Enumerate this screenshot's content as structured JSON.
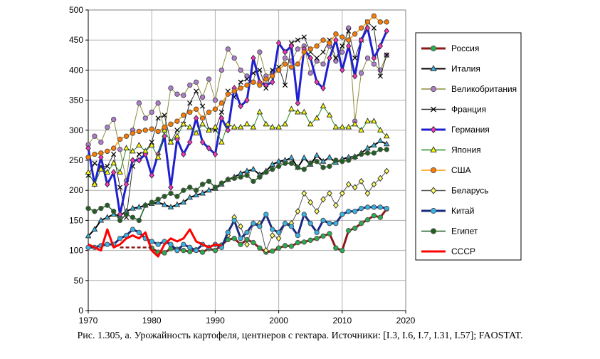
{
  "caption": "Рис. 1.305, а. Урожайность  картофеля, центнеров с гектара. Источники: [I.3, I.6, I.7, I.31, I.57]; FAOSTAT.",
  "chart_data": {
    "type": "line",
    "title": "",
    "xlabel": "",
    "ylabel": "",
    "xlim": [
      1970,
      2020
    ],
    "ylim": [
      0,
      500
    ],
    "xticks": [
      1970,
      1980,
      1990,
      2000,
      2010,
      2020
    ],
    "yticks": [
      0,
      50,
      100,
      150,
      200,
      250,
      300,
      350,
      400,
      450,
      500
    ],
    "grid": true,
    "legend_position": "right",
    "series": [
      {
        "name": "Россия",
        "color": "#8b1a1a",
        "marker": "circle",
        "marker_fill": "#22b14c",
        "width": 3,
        "x": [
          1980,
          1981,
          1982,
          1983,
          1984,
          1985,
          1986,
          1987,
          1988,
          1989,
          1990,
          1991,
          1992,
          1993,
          1994,
          1995,
          1996,
          1997,
          1998,
          1999,
          2000,
          2001,
          2002,
          2003,
          2004,
          2005,
          2006,
          2007,
          2008,
          2009,
          2010,
          2011,
          2012,
          2013,
          2014,
          2015,
          2016,
          2017
        ],
        "y": [
          104,
          97,
          96,
          103,
          102,
          100,
          98,
          101,
          97,
          103,
          100,
          109,
          118,
          120,
          110,
          118,
          113,
          104,
          97,
          99,
          104,
          108,
          107,
          113,
          114,
          117,
          120,
          124,
          128,
          104,
          100,
          133,
          137,
          145,
          151,
          158,
          155,
          169
        ]
      },
      {
        "name": "Италия",
        "color": "#000000",
        "marker": "triangle",
        "marker_fill": "#33b5e5",
        "width": 2,
        "x": [
          1970,
          1971,
          1972,
          1973,
          1974,
          1975,
          1976,
          1977,
          1978,
          1979,
          1980,
          1981,
          1982,
          1983,
          1984,
          1985,
          1986,
          1987,
          1988,
          1989,
          1990,
          1991,
          1992,
          1993,
          1994,
          1995,
          1996,
          1997,
          1998,
          1999,
          2000,
          2001,
          2002,
          2003,
          2004,
          2005,
          2006,
          2007,
          2008,
          2009,
          2010,
          2011,
          2012,
          2013,
          2014,
          2015,
          2016,
          2017
        ],
        "y": [
          124,
          135,
          150,
          155,
          160,
          158,
          165,
          170,
          172,
          175,
          178,
          180,
          176,
          172,
          176,
          180,
          188,
          192,
          195,
          200,
          203,
          210,
          218,
          222,
          228,
          232,
          235,
          226,
          232,
          243,
          248,
          250,
          254,
          238,
          254,
          243,
          258,
          248,
          255,
          246,
          252,
          255,
          256,
          262,
          270,
          275,
          282,
          277
        ]
      },
      {
        "name": "Великобритания",
        "color": "#8b8b3a",
        "marker": "circle",
        "marker_fill": "#b07cd0",
        "width": 1,
        "x": [
          1970,
          1971,
          1972,
          1973,
          1974,
          1975,
          1976,
          1977,
          1978,
          1979,
          1980,
          1981,
          1982,
          1983,
          1984,
          1985,
          1986,
          1987,
          1988,
          1989,
          1990,
          1991,
          1992,
          1993,
          1994,
          1995,
          1996,
          1997,
          1998,
          1999,
          2000,
          2001,
          2002,
          2003,
          2004,
          2005,
          2006,
          2007,
          2008,
          2009,
          2010,
          2011,
          2012,
          2013,
          2014,
          2015,
          2016,
          2017
        ],
        "y": [
          276,
          290,
          280,
          305,
          318,
          268,
          216,
          300,
          345,
          320,
          330,
          345,
          300,
          370,
          360,
          358,
          375,
          380,
          355,
          385,
          350,
          400,
          435,
          420,
          400,
          390,
          380,
          430,
          390,
          395,
          400,
          420,
          415,
          435,
          440,
          395,
          415,
          410,
          440,
          415,
          430,
          470,
          315,
          395,
          420,
          410,
          400,
          425
        ]
      },
      {
        "name": "Франция",
        "color": "#333333",
        "marker": "x",
        "marker_fill": "#000000",
        "width": 1,
        "x": [
          1970,
          1971,
          1972,
          1973,
          1974,
          1975,
          1976,
          1977,
          1978,
          1979,
          1980,
          1981,
          1982,
          1983,
          1984,
          1985,
          1986,
          1987,
          1988,
          1989,
          1990,
          1991,
          1992,
          1993,
          1994,
          1995,
          1996,
          1997,
          1998,
          1999,
          2000,
          2001,
          2002,
          2003,
          2004,
          2005,
          2006,
          2007,
          2008,
          2009,
          2010,
          2011,
          2012,
          2013,
          2014,
          2015,
          2016,
          2017
        ],
        "y": [
          225,
          245,
          240,
          240,
          260,
          205,
          155,
          240,
          260,
          265,
          280,
          320,
          325,
          280,
          300,
          310,
          345,
          365,
          340,
          300,
          300,
          330,
          365,
          355,
          380,
          385,
          395,
          400,
          370,
          400,
          405,
          375,
          445,
          450,
          455,
          430,
          420,
          430,
          450,
          420,
          440,
          465,
          420,
          450,
          480,
          470,
          390,
          425
        ]
      },
      {
        "name": "Германия",
        "color": "#1f1fd0",
        "marker": "diamond",
        "marker_fill": "#ff33cc",
        "width": 3,
        "x": [
          1970,
          1971,
          1972,
          1973,
          1974,
          1975,
          1976,
          1977,
          1978,
          1979,
          1980,
          1981,
          1982,
          1983,
          1984,
          1985,
          1986,
          1987,
          1988,
          1989,
          1990,
          1991,
          1992,
          1993,
          1994,
          1995,
          1996,
          1997,
          1998,
          1999,
          2000,
          2001,
          2002,
          2003,
          2004,
          2005,
          2006,
          2007,
          2008,
          2009,
          2010,
          2011,
          2012,
          2013,
          2014,
          2015,
          2016,
          2017
        ],
        "y": [
          270,
          210,
          255,
          210,
          230,
          160,
          210,
          250,
          250,
          260,
          225,
          260,
          290,
          205,
          285,
          260,
          280,
          320,
          280,
          270,
          260,
          320,
          300,
          370,
          340,
          350,
          420,
          380,
          375,
          380,
          445,
          430,
          440,
          345,
          435,
          420,
          380,
          370,
          420,
          450,
          400,
          440,
          390,
          450,
          470,
          420,
          440,
          465
        ]
      },
      {
        "name": "Япония",
        "color": "#228b22",
        "marker": "triangle",
        "marker_fill": "#ffff00",
        "width": 1,
        "x": [
          1970,
          1971,
          1972,
          1973,
          1974,
          1975,
          1976,
          1977,
          1978,
          1979,
          1980,
          1981,
          1982,
          1983,
          1984,
          1985,
          1986,
          1987,
          1988,
          1989,
          1990,
          1991,
          1992,
          1993,
          1994,
          1995,
          1996,
          1997,
          1998,
          1999,
          2000,
          2001,
          2002,
          2003,
          2004,
          2005,
          2006,
          2007,
          2008,
          2009,
          2010,
          2011,
          2012,
          2013,
          2014,
          2015,
          2016,
          2017
        ],
        "y": [
          230,
          210,
          235,
          230,
          245,
          230,
          270,
          265,
          275,
          265,
          275,
          255,
          300,
          280,
          290,
          310,
          305,
          295,
          310,
          300,
          305,
          280,
          310,
          305,
          305,
          310,
          305,
          330,
          310,
          305,
          305,
          310,
          335,
          330,
          330,
          310,
          320,
          340,
          325,
          305,
          305,
          305,
          310,
          300,
          315,
          315,
          300,
          290
        ]
      },
      {
        "name": "США",
        "color": "#ff9900",
        "marker": "circle",
        "marker_fill": "#ff7a00",
        "width": 1.5,
        "x": [
          1970,
          1971,
          1972,
          1973,
          1974,
          1975,
          1976,
          1977,
          1978,
          1979,
          1980,
          1981,
          1982,
          1983,
          1984,
          1985,
          1986,
          1987,
          1988,
          1989,
          1990,
          1991,
          1992,
          1993,
          1994,
          1995,
          1996,
          1997,
          1998,
          1999,
          2000,
          2001,
          2002,
          2003,
          2004,
          2005,
          2006,
          2007,
          2008,
          2009,
          2010,
          2011,
          2012,
          2013,
          2014,
          2015,
          2016,
          2017
        ],
        "y": [
          255,
          260,
          262,
          265,
          270,
          285,
          290,
          295,
          298,
          300,
          302,
          298,
          305,
          310,
          315,
          325,
          330,
          335,
          320,
          330,
          335,
          345,
          360,
          365,
          370,
          375,
          380,
          375,
          385,
          390,
          400,
          410,
          405,
          410,
          430,
          435,
          440,
          450,
          445,
          460,
          455,
          450,
          460,
          470,
          480,
          490,
          480,
          480
        ]
      },
      {
        "name": "Беларусь",
        "color": "#555555",
        "marker": "diamond",
        "marker_fill": "#ffff66",
        "width": 1,
        "x": [
          1992,
          1993,
          1994,
          1995,
          1996,
          1997,
          1998,
          1999,
          2000,
          2001,
          2002,
          2003,
          2004,
          2005,
          2006,
          2007,
          2008,
          2009,
          2010,
          2011,
          2012,
          2013,
          2014,
          2015,
          2016,
          2017
        ],
        "y": [
          125,
          155,
          140,
          110,
          145,
          145,
          100,
          125,
          120,
          145,
          145,
          165,
          195,
          180,
          165,
          185,
          195,
          175,
          195,
          210,
          205,
          215,
          195,
          210,
          220,
          232
        ]
      },
      {
        "name": "Китай",
        "color": "#1a2a80",
        "marker": "circle",
        "marker_fill": "#33b5e5",
        "width": 3,
        "x": [
          1970,
          1971,
          1972,
          1973,
          1974,
          1975,
          1976,
          1977,
          1978,
          1979,
          1980,
          1981,
          1982,
          1983,
          1984,
          1985,
          1986,
          1987,
          1988,
          1989,
          1990,
          1991,
          1992,
          1993,
          1994,
          1995,
          1996,
          1997,
          1998,
          1999,
          2000,
          2001,
          2002,
          2003,
          2004,
          2005,
          2006,
          2007,
          2008,
          2009,
          2010,
          2011,
          2012,
          2013,
          2014,
          2015,
          2016,
          2017
        ],
        "y": [
          105,
          105,
          108,
          110,
          110,
          120,
          125,
          135,
          130,
          120,
          115,
          110,
          115,
          110,
          100,
          110,
          105,
          100,
          110,
          105,
          110,
          105,
          130,
          150,
          120,
          130,
          145,
          140,
          160,
          135,
          130,
          145,
          140,
          125,
          160,
          145,
          130,
          150,
          145,
          145,
          160,
          165,
          165,
          170,
          172,
          172,
          172,
          170
        ]
      },
      {
        "name": "Египет",
        "color": "#1f5f1f",
        "marker": "circle",
        "marker_fill": "#1f5f1f",
        "width": 1.5,
        "x": [
          1970,
          1971,
          1972,
          1973,
          1974,
          1975,
          1976,
          1977,
          1978,
          1979,
          1980,
          1981,
          1982,
          1983,
          1984,
          1985,
          1986,
          1987,
          1988,
          1989,
          1990,
          1991,
          1992,
          1993,
          1994,
          1995,
          1996,
          1997,
          1998,
          1999,
          2000,
          2001,
          2002,
          2003,
          2004,
          2005,
          2006,
          2007,
          2008,
          2009,
          2010,
          2011,
          2012,
          2013,
          2014,
          2015,
          2016,
          2017
        ],
        "y": [
          170,
          165,
          170,
          175,
          165,
          150,
          160,
          155,
          150,
          175,
          180,
          185,
          190,
          195,
          190,
          200,
          205,
          200,
          210,
          215,
          205,
          212,
          218,
          220,
          222,
          225,
          215,
          222,
          230,
          235,
          240,
          245,
          245,
          238,
          235,
          245,
          248,
          238,
          240,
          250,
          248,
          250,
          255,
          260,
          262,
          262,
          268,
          268
        ]
      },
      {
        "name": "СССР",
        "color": "#ff0000",
        "marker": "none",
        "marker_fill": "#ff0000",
        "width": 3,
        "x": [
          1970,
          1971,
          1972,
          1973,
          1974,
          1975,
          1976,
          1977,
          1978,
          1979,
          1980,
          1981,
          1982,
          1983,
          1984,
          1985,
          1986,
          1987,
          1988,
          1989,
          1990,
          1991
        ],
        "y": [
          110,
          105,
          100,
          135,
          105,
          110,
          120,
          125,
          120,
          130,
          100,
          90,
          110,
          120,
          115,
          120,
          135,
          115,
          110,
          105,
          110,
          108
        ]
      }
    ],
    "annotations": [
      {
        "type": "dashed-line",
        "color": "#8b1a1a",
        "x": [
          1975,
          1980
        ],
        "y": [
          105,
          105
        ]
      }
    ]
  }
}
